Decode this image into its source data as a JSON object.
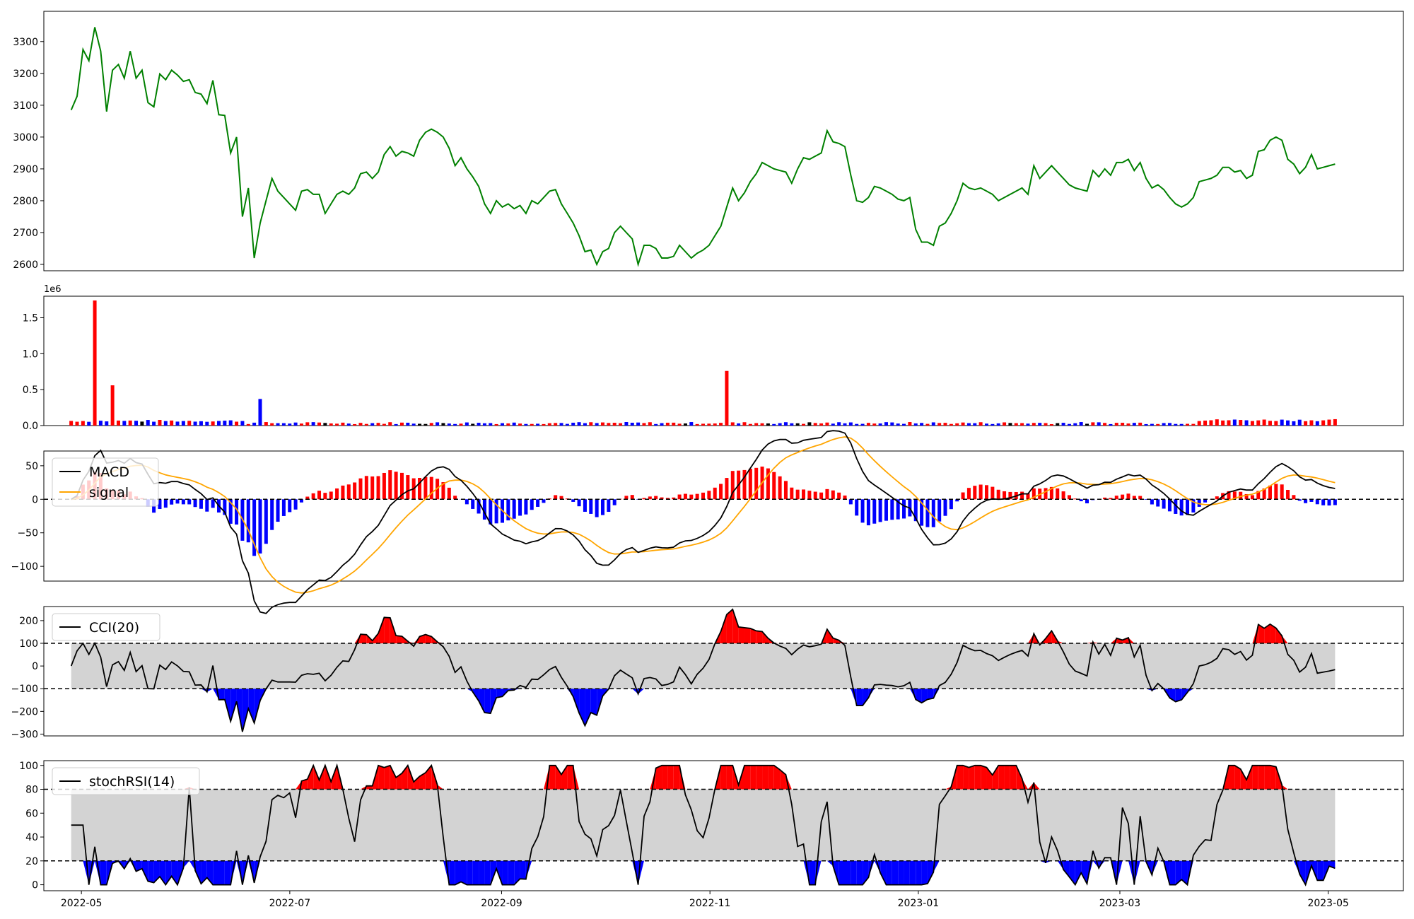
{
  "chart_data": [
    {
      "type": "line",
      "panel": "price",
      "series": [
        {
          "values": [
            3085,
            3128,
            3275,
            3240,
            3345,
            3270,
            3080,
            3210,
            3228,
            3185,
            3270,
            3185,
            3210,
            3108,
            3095,
            3198,
            3180,
            3210,
            3195,
            3175,
            3180,
            3140,
            3135,
            3105,
            3178,
            3070,
            3068,
            2950,
            3000,
            2750,
            2840,
            2620,
            2730,
            2800,
            2870,
            2830,
            2810,
            2790,
            2770,
            2830,
            2835,
            2820,
            2820,
            2760,
            2790,
            2820,
            2830,
            2820,
            2840,
            2885,
            2890,
            2870,
            2890,
            2945,
            2970,
            2940,
            2955,
            2950,
            2940,
            2990,
            3015,
            3025,
            3015,
            3000,
            2965,
            2910,
            2935,
            2900,
            2875,
            2845,
            2790,
            2760,
            2800,
            2780,
            2790,
            2775,
            2785,
            2760,
            2800,
            2790,
            2810,
            2830,
            2835,
            2790,
            2760,
            2730,
            2690,
            2640,
            2645,
            2600,
            2640,
            2650,
            2700,
            2720,
            2700,
            2680,
            2600,
            2660,
            2660,
            2650,
            2620,
            2620,
            2625,
            2660,
            2640,
            2620,
            2635,
            2645,
            2660,
            2690,
            2720,
            2780,
            2840,
            2800,
            2825,
            2860,
            2885,
            2920,
            2910,
            2900,
            2895,
            2890,
            2855,
            2900,
            2935,
            2930,
            2940,
            2950,
            3020,
            2985,
            2980,
            2970,
            2880,
            2800,
            2795,
            2810,
            2845,
            2840,
            2830,
            2820,
            2805,
            2800,
            2810,
            2710,
            2670,
            2670,
            2660,
            2720,
            2730,
            2760,
            2800,
            2855,
            2840,
            2835,
            2840,
            2830,
            2820,
            2800,
            2810,
            2820,
            2830,
            2840,
            2820,
            2910,
            2870,
            2890,
            2910,
            2890,
            2870,
            2850,
            2840,
            2835,
            2830,
            2895,
            2875,
            2900,
            2880,
            2920,
            2920,
            2930,
            2895,
            2920,
            2870,
            2840,
            2850,
            2835,
            2810,
            2790,
            2780,
            2790,
            2810,
            2860,
            2865,
            2870,
            2880,
            2905,
            2905,
            2890,
            2895,
            2870,
            2880,
            2955,
            2960,
            2990,
            3000,
            2990,
            2930,
            2915,
            2885,
            2905,
            2945,
            2900,
            2905,
            2910,
            2915
          ]
        }
      ],
      "x_range": [
        "2022-04-20",
        "2023-05-23"
      ],
      "ylim": [
        2580,
        3395
      ],
      "yticks": [
        2600,
        2700,
        2800,
        2900,
        3000,
        3100,
        3200,
        3300
      ],
      "line_color": "#008000"
    },
    {
      "type": "bar",
      "panel": "volume",
      "offset_label": "1e6",
      "ylim": [
        0,
        1.8
      ],
      "yticks": [
        0.0,
        0.5,
        1.0,
        1.5
      ],
      "ytick_labels": [
        "0.0",
        "0.5",
        "1.0",
        "1.5"
      ],
      "up_color": "#ff0000",
      "down_color": "#0000ff",
      "spikes": [
        {
          "index": 4,
          "value": 1.74,
          "color": "red"
        },
        {
          "index": 7,
          "value": 0.56,
          "color": "red"
        },
        {
          "index": 32,
          "value": 0.37,
          "color": "blue"
        },
        {
          "index": 111,
          "value": 0.76,
          "color": "red"
        }
      ]
    },
    {
      "type": "line",
      "panel": "macd",
      "series": [
        {
          "name": "MACD",
          "color": "#000000"
        },
        {
          "name": "signal",
          "color": "#ffa500"
        }
      ],
      "ylim": [
        -122,
        72
      ],
      "yticks": [
        -100,
        -50,
        0,
        50
      ],
      "ytick_labels": [
        "−100",
        "−50",
        "0",
        "50"
      ],
      "legend": "upper-left"
    },
    {
      "type": "area",
      "panel": "cci",
      "series": [
        {
          "name": "CCI(20)",
          "color": "#000000"
        }
      ],
      "bands": [
        -100,
        100
      ],
      "ylim": [
        -308,
        262
      ],
      "yticks": [
        -300,
        -200,
        -100,
        0,
        100,
        200
      ],
      "ytick_labels": [
        "−300",
        "−200",
        "−100",
        "0",
        "100",
        "200"
      ],
      "legend": "upper-left"
    },
    {
      "type": "area",
      "panel": "stochrsi",
      "series": [
        {
          "name": "stochRSI(14)",
          "color": "#000000"
        }
      ],
      "bands": [
        20,
        80
      ],
      "ylim": [
        -5,
        104
      ],
      "yticks": [
        0,
        20,
        40,
        60,
        80,
        100
      ],
      "legend": "upper-left",
      "xticks": [
        "2022-05",
        "2022-07",
        "2022-09",
        "2022-11",
        "2023-01",
        "2023-03",
        "2023-05"
      ]
    }
  ]
}
